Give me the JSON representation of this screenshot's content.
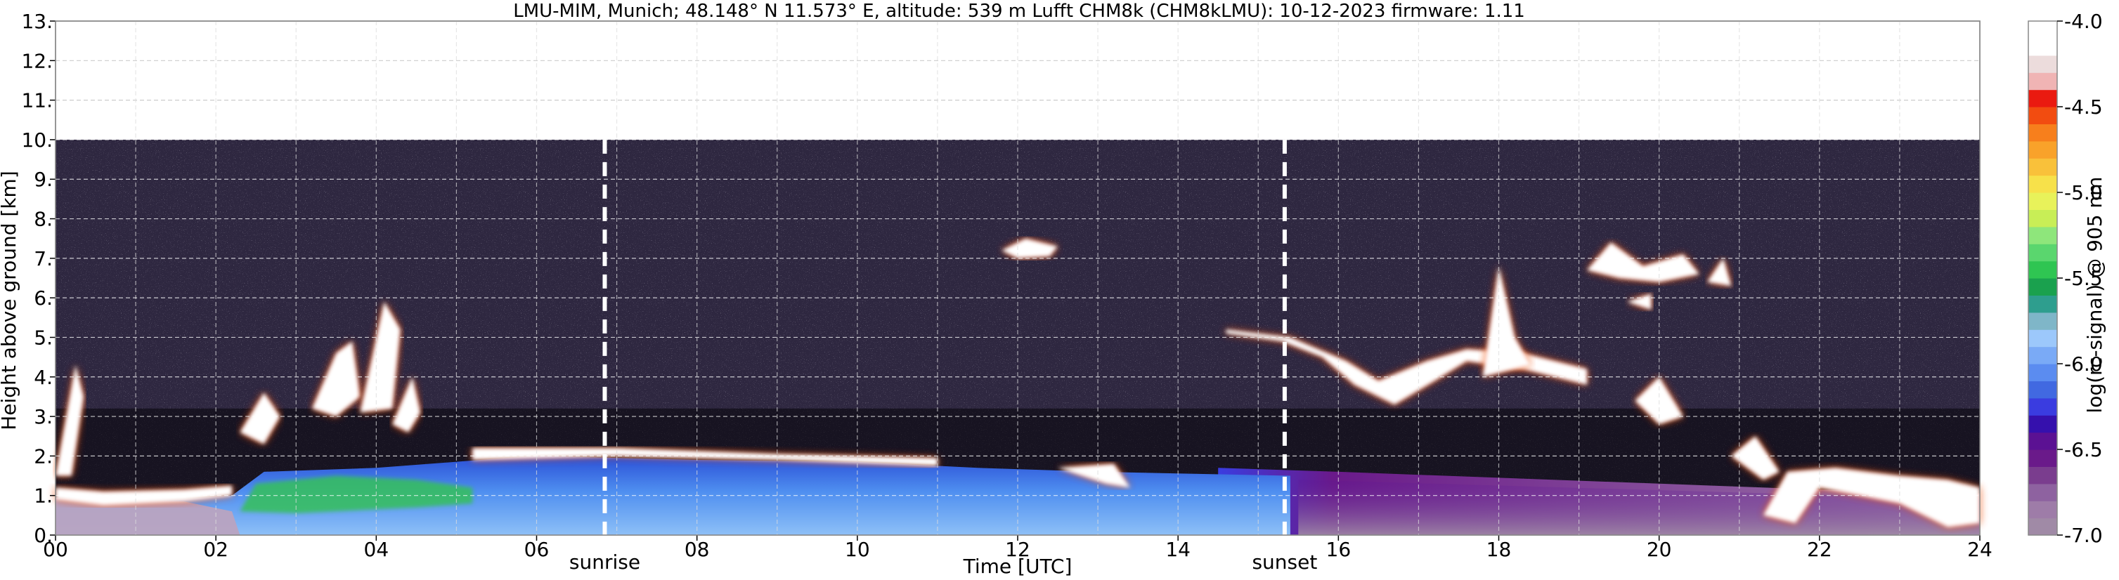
{
  "chart_data": {
    "type": "heatmap",
    "title": "LMU-MIM, Munich; 48.148° N 11.573° E, altitude: 539 m    Lufft CHM8k (CHM8kLMU): 10-12-2023    firmware: 1.11",
    "xlabel": "Time [UTC]",
    "ylabel": "Height above ground [km]",
    "xlim": [
      0,
      24
    ],
    "ylim": [
      0,
      13
    ],
    "x_ticks": [
      "00",
      "02",
      "04",
      "06",
      "08",
      "10",
      "12",
      "14",
      "16",
      "18",
      "20",
      "22",
      "24"
    ],
    "y_ticks": [
      "0.",
      "1.",
      "2.",
      "3.",
      "4.",
      "5.",
      "6.",
      "7.",
      "8.",
      "9.",
      "10.",
      "11.",
      "12.",
      "13."
    ],
    "grid": true,
    "data_top_height_km": 10,
    "annotations": [
      {
        "label": "sunrise",
        "time_utc": 6.85
      },
      {
        "label": "sunset",
        "time_utc": 15.33
      }
    ],
    "colorbar": {
      "label": "log(rc-signal) @ 905 nm",
      "range": [
        -7.0,
        -4.0
      ],
      "ticks": [
        "-7.0",
        "-6.5",
        "-6.0",
        "-5.5",
        "-5.0",
        "-4.5",
        "-4.0"
      ],
      "levels": [
        "#a08aa6",
        "#9e7ca8",
        "#8e62a0",
        "#7a3d8e",
        "#6a1a8a",
        "#5b1193",
        "#3510ad",
        "#3a3ce0",
        "#4169e1",
        "#5b8cf0",
        "#7aaaf6",
        "#9cc8fb",
        "#7fb6c8",
        "#2e9e8e",
        "#1aa14e",
        "#2fc552",
        "#5ad66e",
        "#8ee67b",
        "#c8ee56",
        "#e8f25a",
        "#f7e14a",
        "#f9c13a",
        "#f9a22a",
        "#f77f1c",
        "#f24c10",
        "#ea1a10",
        "#f0b4b4",
        "#ecdcdc",
        "#ffffff",
        "#ffffff"
      ]
    },
    "features": [
      {
        "kind": "boundary_layer_aerosol",
        "time_range": [
          2.3,
          15.5
        ],
        "height_km": [
          0.0,
          2.0
        ],
        "value": -6.0
      },
      {
        "kind": "residual_layer",
        "time_range": [
          15.5,
          24.0
        ],
        "height_km": [
          0.0,
          1.5
        ],
        "value": -6.6
      },
      {
        "kind": "low_cloud",
        "time_range": [
          0.0,
          2.3
        ],
        "height_km": [
          0.8,
          1.2
        ],
        "value": -4.0
      },
      {
        "kind": "cloud_top_layer",
        "time_range": [
          5.2,
          11.0
        ],
        "height_km": [
          1.8,
          2.2
        ],
        "value": -4.0
      },
      {
        "kind": "mid_cloud",
        "time_range": [
          15.0,
          19.0
        ],
        "height_km": [
          3.5,
          5.1
        ],
        "value": -4.0
      },
      {
        "kind": "mid_cloud",
        "time_range": [
          19.0,
          21.0
        ],
        "height_km": [
          6.0,
          7.5
        ],
        "value": -4.3
      },
      {
        "kind": "low_cloud",
        "time_range": [
          21.2,
          24.0
        ],
        "height_km": [
          0.5,
          1.8
        ],
        "value": -4.0
      }
    ]
  }
}
